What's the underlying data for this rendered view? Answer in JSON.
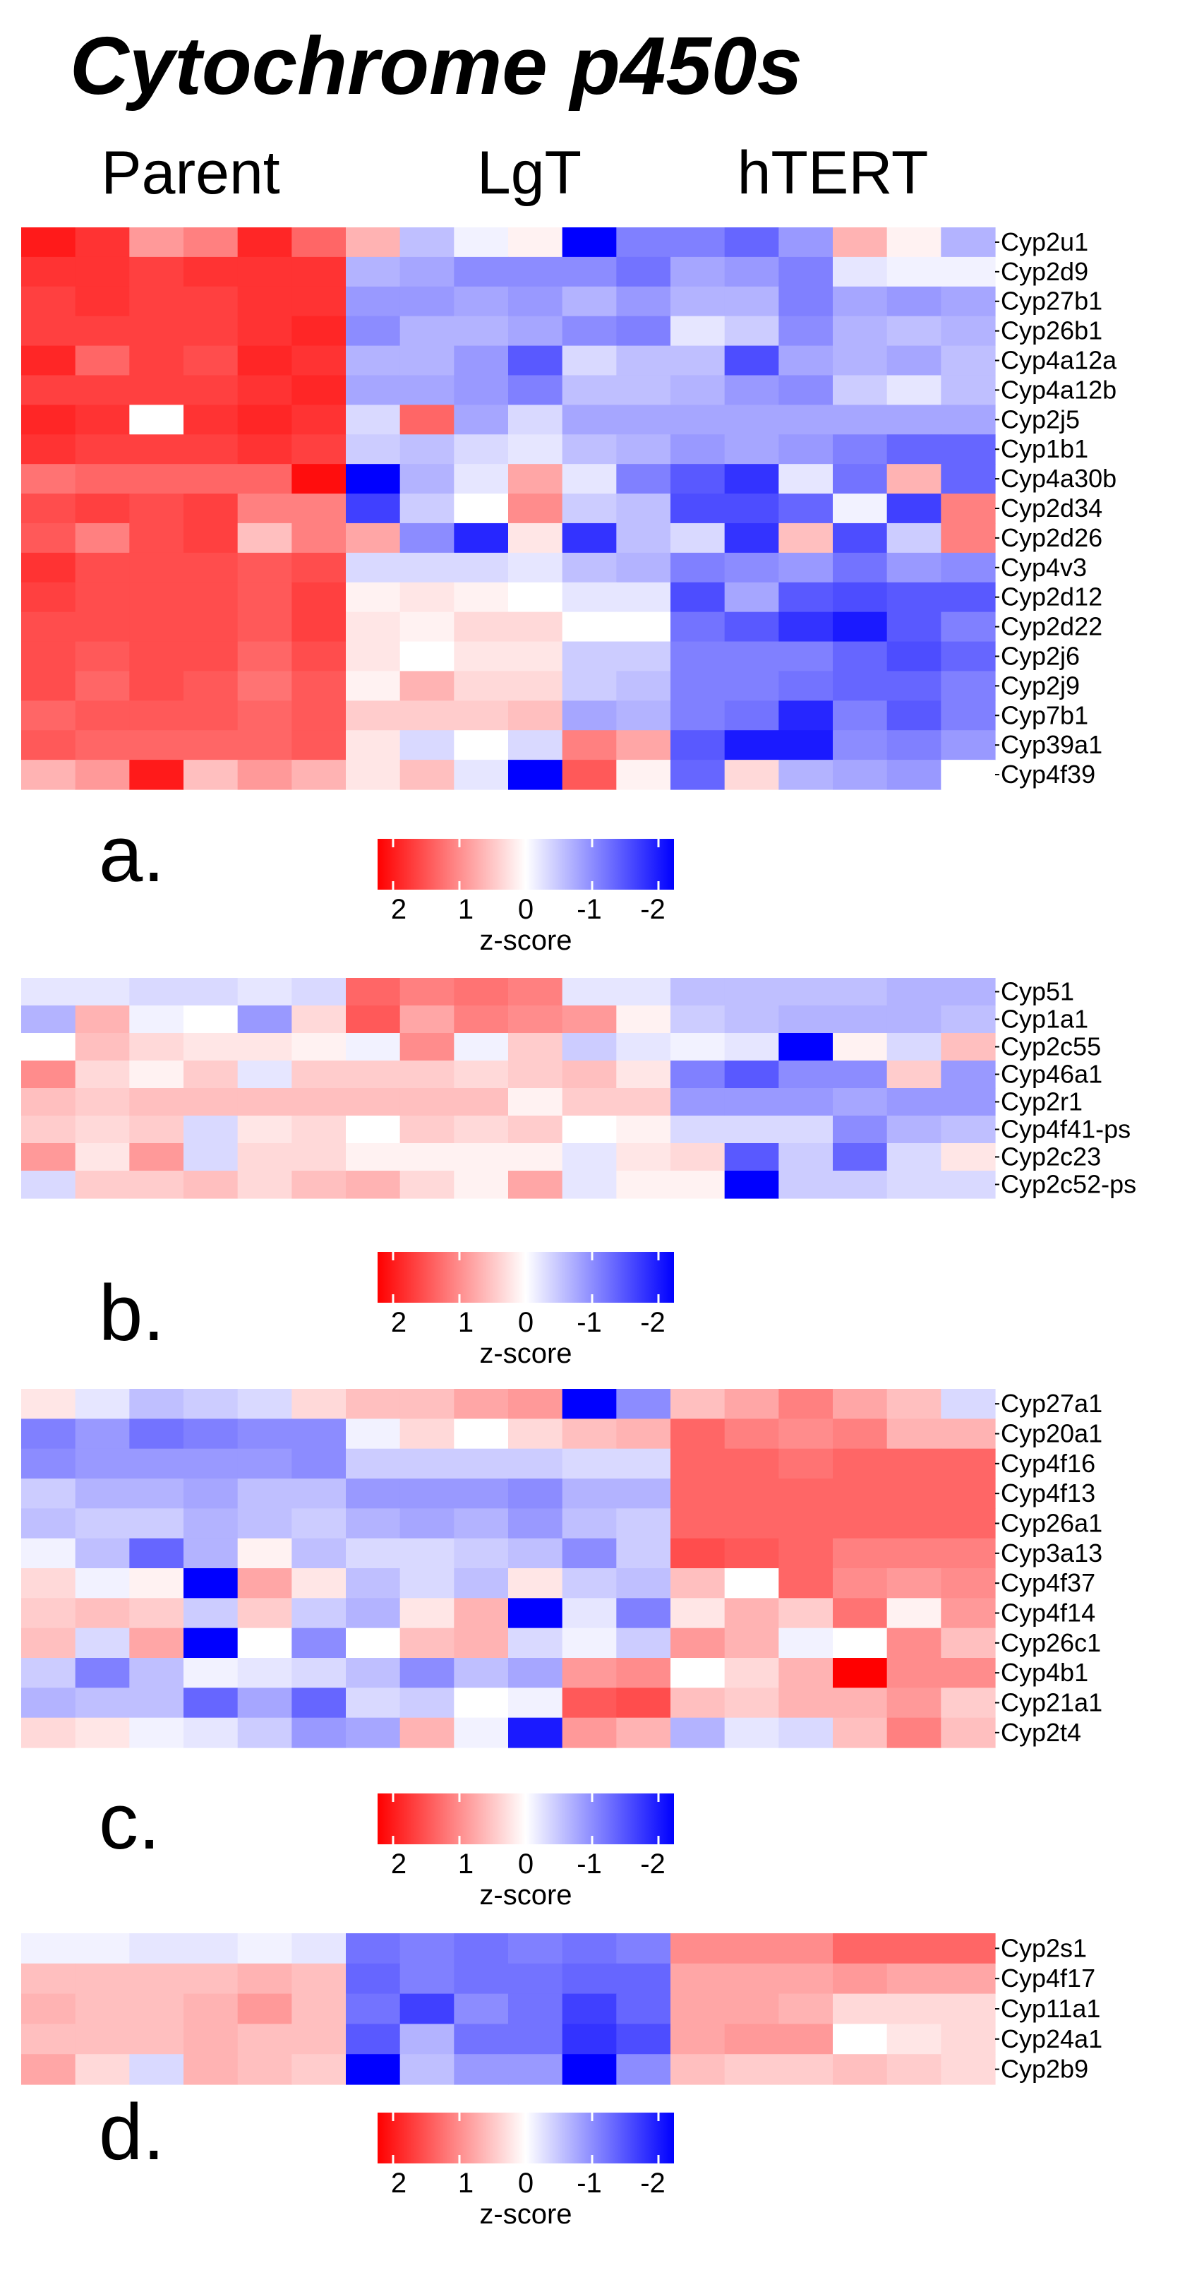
{
  "title": "Cytochrome p450s",
  "group_labels": [
    "Parent",
    "LgT",
    "hTERT"
  ],
  "legend": {
    "title": "z-score",
    "ticks": [
      "2",
      "1",
      "0",
      "-1",
      "-2"
    ],
    "tick_values": [
      2,
      1,
      0,
      -1,
      -2
    ],
    "range": [
      -2,
      2
    ],
    "colors": {
      "high": "#ff0000",
      "mid": "#ffffff",
      "low": "#0000ff"
    }
  },
  "chart_data": [
    {
      "type": "heatmap",
      "panel": "a.",
      "column_groups": [
        "Parent",
        "LgT",
        "hTERT"
      ],
      "columns_per_group": 6,
      "rows": [
        "Cyp2u1",
        "Cyp2d9",
        "Cyp27b1",
        "Cyp26b1",
        "Cyp4a12a",
        "Cyp4a12b",
        "Cyp2j5",
        "Cyp1b1",
        "Cyp4a30b",
        "Cyp2d34",
        "Cyp2d26",
        "Cyp4v3",
        "Cyp2d12",
        "Cyp2d22",
        "Cyp2j6",
        "Cyp2j9",
        "Cyp7b1",
        "Cyp39a1",
        "Cyp4f39"
      ],
      "values": [
        [
          1.8,
          1.6,
          0.8,
          1.0,
          1.7,
          1.2,
          0.6,
          -0.5,
          -0.1,
          0.1,
          -2.0,
          -1.0,
          -1.0,
          -1.2,
          -0.8,
          0.6,
          0.1,
          -0.6
        ],
        [
          1.6,
          1.6,
          1.5,
          1.6,
          1.6,
          1.6,
          -0.6,
          -0.7,
          -0.9,
          -0.9,
          -0.9,
          -1.1,
          -0.7,
          -0.8,
          -1.0,
          -0.2,
          -0.1,
          -0.1
        ],
        [
          1.5,
          1.6,
          1.5,
          1.5,
          1.6,
          1.6,
          -0.8,
          -0.8,
          -0.7,
          -0.8,
          -0.6,
          -0.8,
          -0.6,
          -0.6,
          -1.0,
          -0.7,
          -0.8,
          -0.7
        ],
        [
          1.5,
          1.5,
          1.5,
          1.5,
          1.6,
          1.7,
          -0.9,
          -0.6,
          -0.6,
          -0.7,
          -0.9,
          -1.0,
          -0.2,
          -0.4,
          -0.9,
          -0.6,
          -0.5,
          -0.6
        ],
        [
          1.7,
          1.2,
          1.5,
          1.4,
          1.7,
          1.6,
          -0.6,
          -0.6,
          -0.8,
          -1.3,
          -0.3,
          -0.5,
          -0.5,
          -1.4,
          -0.7,
          -0.6,
          -0.7,
          -0.5
        ],
        [
          1.5,
          1.5,
          1.5,
          1.5,
          1.6,
          1.7,
          -0.7,
          -0.7,
          -0.8,
          -1.0,
          -0.5,
          -0.5,
          -0.6,
          -0.8,
          -0.9,
          -0.4,
          -0.2,
          -0.5
        ],
        [
          1.7,
          1.6,
          0.0,
          1.6,
          1.7,
          1.6,
          -0.3,
          1.2,
          -0.7,
          -0.3,
          -0.7,
          -0.7,
          -0.7,
          -0.7,
          -0.7,
          -0.7,
          -0.7,
          -0.7
        ],
        [
          1.6,
          1.5,
          1.5,
          1.5,
          1.6,
          1.5,
          -0.4,
          -0.5,
          -0.3,
          -0.2,
          -0.5,
          -0.6,
          -0.8,
          -0.7,
          -0.8,
          -1.0,
          -1.2,
          -1.2
        ],
        [
          1.1,
          1.2,
          1.2,
          1.2,
          1.2,
          1.9,
          -2.0,
          -0.6,
          -0.2,
          0.7,
          -0.2,
          -1.0,
          -1.3,
          -1.6,
          -0.2,
          -1.1,
          0.6,
          -1.2
        ],
        [
          1.4,
          1.5,
          1.4,
          1.5,
          1.0,
          1.0,
          -1.5,
          -0.4,
          0.0,
          0.9,
          -0.4,
          -0.5,
          -1.4,
          -1.4,
          -1.2,
          -0.1,
          -1.5,
          1.0
        ],
        [
          1.3,
          1.0,
          1.4,
          1.5,
          0.5,
          1.0,
          0.7,
          -0.9,
          -1.7,
          0.2,
          -1.6,
          -0.5,
          -0.3,
          -1.6,
          0.5,
          -1.4,
          -0.4,
          1.0
        ],
        [
          1.6,
          1.4,
          1.4,
          1.4,
          1.3,
          1.4,
          -0.3,
          -0.3,
          -0.3,
          -0.2,
          -0.5,
          -0.6,
          -1.0,
          -0.9,
          -0.8,
          -1.1,
          -0.8,
          -0.9
        ],
        [
          1.5,
          1.4,
          1.4,
          1.4,
          1.3,
          1.5,
          0.1,
          0.2,
          0.1,
          0.0,
          -0.2,
          -0.2,
          -1.4,
          -0.7,
          -1.3,
          -1.4,
          -1.3,
          -1.3
        ],
        [
          1.4,
          1.4,
          1.4,
          1.4,
          1.3,
          1.5,
          0.2,
          0.1,
          0.3,
          0.3,
          0.0,
          0.0,
          -1.1,
          -1.3,
          -1.6,
          -1.8,
          -1.3,
          -1.0
        ],
        [
          1.4,
          1.3,
          1.4,
          1.4,
          1.2,
          1.4,
          0.2,
          0.0,
          0.2,
          0.2,
          -0.4,
          -0.4,
          -1.0,
          -1.0,
          -1.0,
          -1.2,
          -1.4,
          -1.2
        ],
        [
          1.4,
          1.2,
          1.4,
          1.3,
          1.1,
          1.3,
          0.1,
          0.6,
          0.3,
          0.3,
          -0.4,
          -0.5,
          -1.0,
          -1.0,
          -1.1,
          -1.2,
          -1.2,
          -1.0
        ],
        [
          1.2,
          1.3,
          1.3,
          1.3,
          1.2,
          1.3,
          0.4,
          0.4,
          0.4,
          0.5,
          -0.7,
          -0.6,
          -1.0,
          -1.1,
          -1.7,
          -1.0,
          -1.3,
          -1.0
        ],
        [
          1.3,
          1.2,
          1.2,
          1.2,
          1.2,
          1.3,
          0.2,
          -0.3,
          0.0,
          -0.3,
          1.0,
          0.7,
          -1.3,
          -1.8,
          -1.8,
          -0.9,
          -1.0,
          -0.8
        ],
        [
          0.6,
          0.8,
          1.8,
          0.5,
          0.8,
          0.6,
          0.2,
          0.5,
          -0.2,
          -2.0,
          1.3,
          0.1,
          -1.2,
          0.3,
          -0.6,
          -0.7,
          -0.8,
          0.0
        ]
      ]
    },
    {
      "type": "heatmap",
      "panel": "b.",
      "column_groups": [
        "Parent",
        "LgT",
        "hTERT"
      ],
      "columns_per_group": 6,
      "rows": [
        "Cyp51",
        "Cyp1a1",
        "Cyp2c55",
        "Cyp46a1",
        "Cyp2r1",
        "Cyp4f41-ps",
        "Cyp2c23",
        "Cyp2c52-ps"
      ],
      "values": [
        [
          -0.2,
          -0.2,
          -0.3,
          -0.3,
          -0.2,
          -0.3,
          1.2,
          1.0,
          1.1,
          1.0,
          -0.2,
          -0.2,
          -0.5,
          -0.5,
          -0.5,
          -0.5,
          -0.6,
          -0.6
        ],
        [
          -0.6,
          0.6,
          -0.1,
          0.0,
          -0.8,
          0.3,
          1.3,
          0.7,
          1.0,
          0.9,
          0.8,
          0.1,
          -0.4,
          -0.5,
          -0.6,
          -0.6,
          -0.6,
          -0.5
        ],
        [
          0.0,
          0.5,
          0.3,
          0.2,
          0.2,
          0.1,
          -0.1,
          0.9,
          -0.1,
          0.4,
          -0.4,
          -0.2,
          -0.1,
          -0.2,
          -2.0,
          0.1,
          -0.3,
          0.5
        ],
        [
          0.9,
          0.3,
          0.1,
          0.4,
          -0.2,
          0.4,
          0.4,
          0.4,
          0.3,
          0.4,
          0.5,
          0.2,
          -1.0,
          -1.3,
          -0.9,
          -0.9,
          0.4,
          -0.8
        ],
        [
          0.5,
          0.4,
          0.5,
          0.5,
          0.5,
          0.5,
          0.5,
          0.5,
          0.5,
          0.1,
          0.4,
          0.4,
          -0.8,
          -0.8,
          -0.8,
          -0.7,
          -0.8,
          -0.8
        ],
        [
          0.4,
          0.3,
          0.4,
          -0.3,
          0.2,
          0.3,
          0.0,
          0.4,
          0.3,
          0.4,
          0.0,
          0.1,
          -0.3,
          -0.3,
          -0.3,
          -0.9,
          -0.6,
          -0.5
        ],
        [
          0.8,
          0.2,
          0.8,
          -0.3,
          0.3,
          0.3,
          0.1,
          0.1,
          0.1,
          0.1,
          -0.2,
          0.2,
          0.3,
          -1.3,
          -0.4,
          -1.2,
          -0.3,
          0.2
        ],
        [
          -0.3,
          0.4,
          0.4,
          0.5,
          0.3,
          0.5,
          0.6,
          0.3,
          0.1,
          0.7,
          -0.2,
          0.1,
          0.1,
          -2.0,
          -0.4,
          -0.4,
          -0.3,
          -0.3
        ]
      ]
    },
    {
      "type": "heatmap",
      "panel": "c.",
      "column_groups": [
        "Parent",
        "LgT",
        "hTERT"
      ],
      "columns_per_group": 6,
      "rows": [
        "Cyp27a1",
        "Cyp20a1",
        "Cyp4f16",
        "Cyp4f13",
        "Cyp26a1",
        "Cyp3a13",
        "Cyp4f37",
        "Cyp4f14",
        "Cyp26c1",
        "Cyp4b1",
        "Cyp21a1",
        "Cyp2t4"
      ],
      "values": [
        [
          0.2,
          -0.2,
          -0.5,
          -0.4,
          -0.3,
          0.3,
          0.5,
          0.5,
          0.7,
          0.8,
          -2.0,
          -0.9,
          0.5,
          0.7,
          1.0,
          0.7,
          0.5,
          -0.3
        ],
        [
          -1.0,
          -0.8,
          -1.1,
          -1.0,
          -0.9,
          -0.9,
          -0.1,
          0.3,
          0.0,
          0.3,
          0.5,
          0.6,
          1.2,
          1.0,
          0.9,
          1.0,
          0.6,
          0.6
        ],
        [
          -0.9,
          -0.8,
          -0.8,
          -0.8,
          -0.8,
          -0.9,
          -0.4,
          -0.4,
          -0.4,
          -0.4,
          -0.3,
          -0.3,
          1.2,
          1.2,
          1.1,
          1.2,
          1.2,
          1.2
        ],
        [
          -0.4,
          -0.6,
          -0.6,
          -0.7,
          -0.5,
          -0.5,
          -0.8,
          -0.8,
          -0.8,
          -0.9,
          -0.6,
          -0.6,
          1.2,
          1.2,
          1.2,
          1.2,
          1.2,
          1.2
        ],
        [
          -0.5,
          -0.4,
          -0.4,
          -0.6,
          -0.5,
          -0.4,
          -0.6,
          -0.7,
          -0.6,
          -0.8,
          -0.5,
          -0.4,
          1.2,
          1.2,
          1.2,
          1.2,
          1.2,
          1.2
        ],
        [
          -0.1,
          -0.5,
          -1.2,
          -0.6,
          0.1,
          -0.5,
          -0.3,
          -0.3,
          -0.4,
          -0.5,
          -0.9,
          -0.4,
          1.4,
          1.3,
          1.2,
          1.0,
          1.0,
          1.0
        ],
        [
          0.3,
          -0.1,
          0.1,
          -2.0,
          0.7,
          0.2,
          -0.5,
          -0.3,
          -0.5,
          0.2,
          -0.4,
          -0.5,
          0.5,
          0.0,
          1.2,
          0.9,
          0.8,
          0.9
        ],
        [
          0.4,
          0.5,
          0.4,
          -0.4,
          0.4,
          -0.4,
          -0.6,
          0.2,
          0.6,
          -2.0,
          -0.2,
          -1.0,
          0.2,
          0.6,
          0.4,
          1.1,
          0.1,
          0.8
        ],
        [
          0.5,
          -0.3,
          0.7,
          -2.0,
          0.0,
          -0.9,
          0.0,
          0.5,
          0.6,
          -0.3,
          -0.1,
          -0.4,
          0.8,
          0.6,
          -0.1,
          0.0,
          0.9,
          0.5
        ],
        [
          -0.4,
          -1.0,
          -0.5,
          -0.1,
          -0.2,
          -0.3,
          -0.5,
          -0.9,
          -0.5,
          -0.7,
          0.8,
          0.9,
          0.0,
          0.3,
          0.6,
          2.0,
          0.9,
          0.9
        ],
        [
          -0.6,
          -0.5,
          -0.5,
          -1.2,
          -0.7,
          -1.2,
          -0.3,
          -0.4,
          0.0,
          -0.1,
          1.3,
          1.4,
          0.5,
          0.4,
          0.6,
          0.6,
          0.8,
          0.4
        ],
        [
          0.3,
          0.2,
          -0.1,
          -0.2,
          -0.4,
          -0.8,
          -0.7,
          0.6,
          -0.1,
          -1.8,
          0.8,
          0.6,
          -0.6,
          -0.2,
          -0.3,
          0.5,
          1.0,
          0.5
        ]
      ]
    },
    {
      "type": "heatmap",
      "panel": "d.",
      "column_groups": [
        "Parent",
        "LgT",
        "hTERT"
      ],
      "columns_per_group": 6,
      "rows": [
        "Cyp2s1",
        "Cyp4f17",
        "Cyp11a1",
        "Cyp24a1",
        "Cyp2b9"
      ],
      "values": [
        [
          -0.1,
          -0.1,
          -0.2,
          -0.2,
          -0.1,
          -0.2,
          -1.1,
          -1.0,
          -1.1,
          -1.0,
          -1.1,
          -1.0,
          0.9,
          0.9,
          0.9,
          1.2,
          1.2,
          1.2
        ],
        [
          0.5,
          0.5,
          0.5,
          0.5,
          0.6,
          0.5,
          -1.2,
          -1.0,
          -1.1,
          -1.1,
          -1.2,
          -1.2,
          0.7,
          0.7,
          0.7,
          0.8,
          0.7,
          0.7
        ],
        [
          0.6,
          0.5,
          0.5,
          0.6,
          0.8,
          0.5,
          -1.1,
          -1.5,
          -0.9,
          -1.1,
          -1.5,
          -1.2,
          0.7,
          0.7,
          0.6,
          0.3,
          0.3,
          0.3
        ],
        [
          0.5,
          0.5,
          0.5,
          0.6,
          0.5,
          0.5,
          -1.3,
          -0.6,
          -1.1,
          -1.1,
          -1.6,
          -1.4,
          0.7,
          0.8,
          0.8,
          0.0,
          0.2,
          0.3
        ],
        [
          0.7,
          0.3,
          -0.3,
          0.6,
          0.5,
          0.4,
          -2.0,
          -0.5,
          -0.8,
          -0.8,
          -2.0,
          -0.9,
          0.5,
          0.4,
          0.4,
          0.5,
          0.4,
          0.3
        ]
      ]
    }
  ]
}
